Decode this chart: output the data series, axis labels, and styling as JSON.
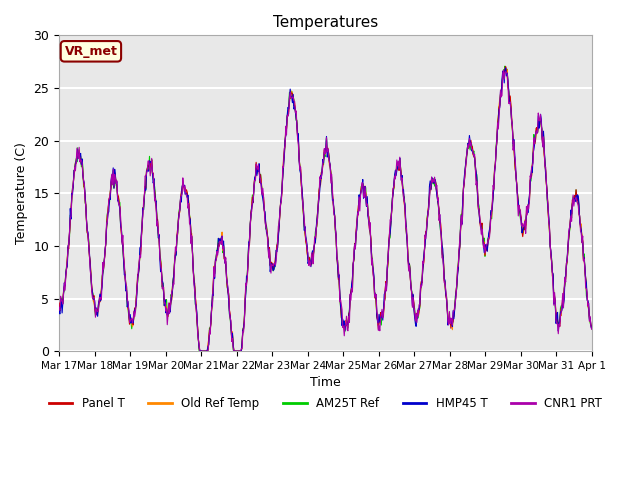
{
  "title": "Temperatures",
  "xlabel": "Time",
  "ylabel": "Temperature (C)",
  "annotation_text": "VR_met",
  "annotation_facecolor": "lightyellow",
  "annotation_edgecolor": "#8B0000",
  "annotation_textcolor": "#8B0000",
  "ylim": [
    0,
    30
  ],
  "series_colors": {
    "Panel T": "#cc0000",
    "Old Ref Temp": "#ff8800",
    "AM25T Ref": "#00cc00",
    "HMP45 T": "#0000cc",
    "CNR1 PRT": "#aa00aa"
  },
  "tick_labels": [
    "Mar 17",
    "Mar 18",
    "Mar 19",
    "Mar 20",
    "Mar 21",
    "Mar 22",
    "Mar 23",
    "Mar 24",
    "Mar 25",
    "Mar 26",
    "Mar 27",
    "Mar 28",
    "Mar 29",
    "Mar 30",
    "Mar 31",
    "Apr 1"
  ],
  "background_color": "#e8e8e8",
  "axes_facecolor": "#e8e8e8",
  "grid_color": "white",
  "seed": 42
}
